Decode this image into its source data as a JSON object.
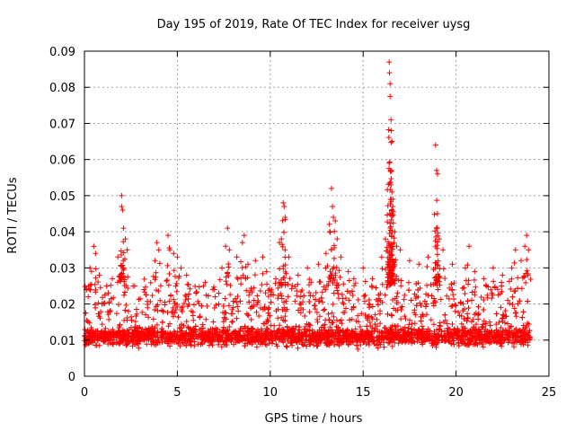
{
  "chart_data": {
    "type": "scatter",
    "title": "Day 195 of 2019, Rate Of TEC Index for receiver uysg",
    "xlabel": "GPS time / hours",
    "ylabel": "ROTI / TECUs",
    "xlim": [
      0,
      25
    ],
    "ylim": [
      0,
      0.09
    ],
    "x_ticks": [
      "0",
      "5",
      "10",
      "15",
      "20",
      "25"
    ],
    "x_tick_values": [
      0,
      5,
      10,
      15,
      20,
      25
    ],
    "y_ticks": [
      "0",
      "0.01",
      "0.02",
      "0.03",
      "0.04",
      "0.05",
      "0.06",
      "0.07",
      "0.08",
      "0.09"
    ],
    "y_tick_values": [
      0,
      0.01,
      0.02,
      0.03,
      0.04,
      0.05,
      0.06,
      0.07,
      0.08,
      0.09
    ],
    "grid": true,
    "marker": "+",
    "series": [
      {
        "name": "ROTI",
        "color": "#ff0000",
        "x_range": [
          0,
          24
        ],
        "base_level": 0.011,
        "typical_band": [
          0.004,
          0.025
        ],
        "points": [
          [
            0.1,
            0.024
          ],
          [
            0.2,
            0.022
          ],
          [
            0.3,
            0.03
          ],
          [
            0.5,
            0.036
          ],
          [
            0.6,
            0.034
          ],
          [
            0.8,
            0.028
          ],
          [
            1.2,
            0.025
          ],
          [
            1.5,
            0.027
          ],
          [
            1.8,
            0.033
          ],
          [
            2.0,
            0.05
          ],
          [
            2.0,
            0.047
          ],
          [
            2.05,
            0.046
          ],
          [
            2.1,
            0.041
          ],
          [
            2.2,
            0.038
          ],
          [
            2.3,
            0.035
          ],
          [
            2.7,
            0.025
          ],
          [
            3.2,
            0.024
          ],
          [
            3.8,
            0.032
          ],
          [
            3.9,
            0.037
          ],
          [
            4.0,
            0.035
          ],
          [
            4.5,
            0.039
          ],
          [
            4.6,
            0.035
          ],
          [
            4.8,
            0.034
          ],
          [
            5.0,
            0.033
          ],
          [
            5.2,
            0.03
          ],
          [
            5.5,
            0.028
          ],
          [
            6.0,
            0.023
          ],
          [
            6.5,
            0.026
          ],
          [
            7.0,
            0.024
          ],
          [
            7.4,
            0.03
          ],
          [
            7.6,
            0.036
          ],
          [
            7.7,
            0.041
          ],
          [
            7.8,
            0.035
          ],
          [
            8.2,
            0.033
          ],
          [
            8.5,
            0.037
          ],
          [
            8.6,
            0.039
          ],
          [
            8.8,
            0.031
          ],
          [
            9.2,
            0.032
          ],
          [
            9.6,
            0.033
          ],
          [
            9.8,
            0.029
          ],
          [
            10.3,
            0.027
          ],
          [
            10.5,
            0.037
          ],
          [
            10.6,
            0.038
          ],
          [
            10.7,
            0.048
          ],
          [
            10.75,
            0.047
          ],
          [
            10.8,
            0.044
          ],
          [
            11.0,
            0.033
          ],
          [
            11.5,
            0.028
          ],
          [
            12.0,
            0.03
          ],
          [
            12.2,
            0.026
          ],
          [
            12.6,
            0.031
          ],
          [
            13.0,
            0.034
          ],
          [
            13.2,
            0.04
          ],
          [
            13.3,
            0.052
          ],
          [
            13.35,
            0.047
          ],
          [
            13.4,
            0.044
          ],
          [
            13.5,
            0.043
          ],
          [
            13.6,
            0.038
          ],
          [
            13.8,
            0.033
          ],
          [
            14.2,
            0.029
          ],
          [
            14.5,
            0.027
          ],
          [
            15.0,
            0.03
          ],
          [
            15.5,
            0.027
          ],
          [
            16.0,
            0.033
          ],
          [
            16.2,
            0.038
          ],
          [
            16.4,
            0.087
          ],
          [
            16.42,
            0.084
          ],
          [
            16.45,
            0.081
          ],
          [
            16.5,
            0.071
          ],
          [
            16.52,
            0.068
          ],
          [
            16.55,
            0.065
          ],
          [
            16.4,
            0.059
          ],
          [
            16.5,
            0.053
          ],
          [
            16.55,
            0.051
          ],
          [
            16.6,
            0.049
          ],
          [
            16.6,
            0.047
          ],
          [
            16.7,
            0.04
          ],
          [
            16.8,
            0.036
          ],
          [
            17.0,
            0.035
          ],
          [
            17.5,
            0.032
          ],
          [
            18.0,
            0.031
          ],
          [
            18.5,
            0.033
          ],
          [
            18.9,
            0.064
          ],
          [
            18.95,
            0.057
          ],
          [
            19.0,
            0.056
          ],
          [
            19.0,
            0.045
          ],
          [
            19.1,
            0.038
          ],
          [
            19.3,
            0.035
          ],
          [
            19.8,
            0.031
          ],
          [
            20.5,
            0.03
          ],
          [
            20.7,
            0.036
          ],
          [
            21.0,
            0.029
          ],
          [
            21.5,
            0.027
          ],
          [
            22.0,
            0.03
          ],
          [
            22.5,
            0.028
          ],
          [
            23.0,
            0.03
          ],
          [
            23.2,
            0.035
          ],
          [
            23.5,
            0.032
          ],
          [
            23.7,
            0.036
          ],
          [
            23.8,
            0.039
          ],
          [
            23.9,
            0.035
          ]
        ]
      }
    ]
  }
}
